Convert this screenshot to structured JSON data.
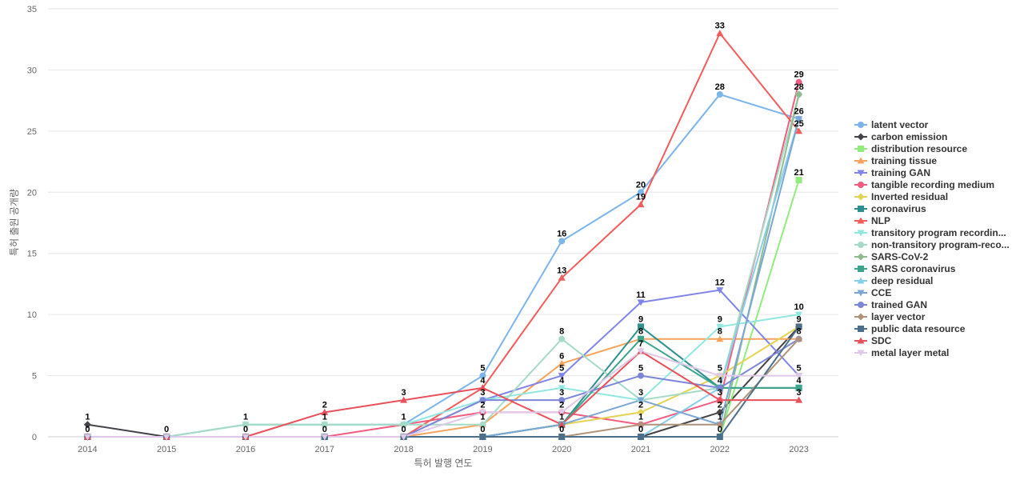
{
  "chart_data": {
    "type": "line",
    "title": "",
    "xlabel": "특허 발행 연도",
    "ylabel": "특허 출원 공개량",
    "ylim": [
      0,
      35
    ],
    "y_ticks": [
      0,
      5,
      10,
      15,
      20,
      25,
      30,
      35
    ],
    "grid": "horizontal",
    "legend_position": "right",
    "x": [
      "2014",
      "2015",
      "2016",
      "2017",
      "2018",
      "2019",
      "2020",
      "2021",
      "2022",
      "2023"
    ],
    "series": [
      {
        "name": "latent vector",
        "color": "#7cb5ec",
        "marker": "circle",
        "values": [
          0,
          0,
          1,
          1,
          1,
          5,
          16,
          20,
          28,
          26
        ]
      },
      {
        "name": "carbon emission",
        "color": "#434348",
        "marker": "diamond",
        "values": [
          1,
          0,
          0,
          0,
          0,
          0,
          0,
          0,
          2,
          9
        ]
      },
      {
        "name": "distribution resource",
        "color": "#90ed7d",
        "marker": "square",
        "values": [
          0,
          0,
          0,
          0,
          0,
          0,
          0,
          0,
          0,
          21
        ]
      },
      {
        "name": "training tissue",
        "color": "#f7a35c",
        "marker": "triangle",
        "values": [
          0,
          0,
          0,
          0,
          0,
          1,
          6,
          8,
          8,
          8
        ]
      },
      {
        "name": "training GAN",
        "color": "#8085e9",
        "marker": "triangle-down",
        "values": [
          0,
          0,
          0,
          0,
          0,
          3,
          5,
          11,
          12,
          5
        ]
      },
      {
        "name": "tangible recording medium",
        "color": "#f15c80",
        "marker": "circle",
        "values": [
          0,
          0,
          0,
          0,
          1,
          2,
          2,
          1,
          3,
          29
        ]
      },
      {
        "name": "Inverted residual",
        "color": "#e4d354",
        "marker": "diamond",
        "values": [
          0,
          0,
          0,
          0,
          0,
          0,
          1,
          2,
          5,
          9
        ]
      },
      {
        "name": "coronavirus",
        "color": "#2b908f",
        "marker": "square",
        "values": [
          0,
          0,
          0,
          0,
          0,
          0,
          1,
          9,
          4,
          4
        ]
      },
      {
        "name": "NLP",
        "color": "#f45b5b",
        "marker": "triangle",
        "values": [
          0,
          0,
          0,
          0,
          0,
          4,
          13,
          19,
          33,
          25
        ]
      },
      {
        "name": "transitory program recordin...",
        "color": "#91e8e1",
        "marker": "triangle-down",
        "values": [
          0,
          0,
          1,
          1,
          1,
          3,
          4,
          3,
          9,
          10
        ]
      },
      {
        "name": "non-transitory program-reco...",
        "color": "#a5dbc6",
        "marker": "circle",
        "values": [
          0,
          0,
          1,
          1,
          1,
          1,
          8,
          3,
          4,
          28
        ]
      },
      {
        "name": "SARS-CoV-2",
        "color": "#8fbc8f",
        "marker": "diamond",
        "values": [
          0,
          0,
          0,
          0,
          0,
          0,
          0,
          0,
          0,
          28
        ]
      },
      {
        "name": "SARS coronavirus",
        "color": "#3aa58a",
        "marker": "square",
        "values": [
          0,
          0,
          0,
          0,
          0,
          0,
          1,
          8,
          4,
          4
        ]
      },
      {
        "name": "deep residual",
        "color": "#87ceeb",
        "marker": "triangle",
        "values": [
          0,
          0,
          0,
          0,
          0,
          0,
          0,
          0,
          4,
          26
        ]
      },
      {
        "name": "CCE",
        "color": "#7ba7d6",
        "marker": "triangle-down",
        "values": [
          0,
          0,
          0,
          0,
          0,
          0,
          1,
          3,
          1,
          26
        ]
      },
      {
        "name": "trained GAN",
        "color": "#7b86d8",
        "marker": "circle",
        "values": [
          0,
          0,
          0,
          0,
          0,
          3,
          3,
          5,
          4,
          8
        ]
      },
      {
        "name": "layer vector",
        "color": "#b0937a",
        "marker": "diamond",
        "values": [
          0,
          0,
          0,
          0,
          0,
          0,
          0,
          1,
          1,
          8
        ]
      },
      {
        "name": "public data resource",
        "color": "#4b6f8a",
        "marker": "square",
        "values": [
          0,
          0,
          0,
          0,
          0,
          0,
          0,
          0,
          0,
          9
        ]
      },
      {
        "name": "SDC",
        "color": "#e8505b",
        "marker": "triangle",
        "values": [
          0,
          0,
          0,
          2,
          3,
          4,
          1,
          7,
          3,
          3
        ]
      },
      {
        "name": "metal layer metal",
        "color": "#e0c8e8",
        "marker": "triangle-down",
        "values": [
          0,
          0,
          0,
          0,
          0,
          2,
          2,
          7,
          5,
          5
        ]
      }
    ],
    "data_labels": [
      {
        "x": "2014",
        "text": "1",
        "y": 1
      },
      {
        "x": "2014",
        "text": "0",
        "y": 0
      },
      {
        "x": "2015",
        "text": "0",
        "y": 0
      },
      {
        "x": "2016",
        "text": "1",
        "y": 1
      },
      {
        "x": "2016",
        "text": "0",
        "y": 0
      },
      {
        "x": "2017",
        "text": "2",
        "y": 2
      },
      {
        "x": "2017",
        "text": "1",
        "y": 1
      },
      {
        "x": "2017",
        "text": "0",
        "y": 0
      },
      {
        "x": "2018",
        "text": "3",
        "y": 3
      },
      {
        "x": "2018",
        "text": "1",
        "y": 1
      },
      {
        "x": "2018",
        "text": "0",
        "y": 0
      },
      {
        "x": "2019",
        "text": "5",
        "y": 5
      },
      {
        "x": "2019",
        "text": "4",
        "y": 4
      },
      {
        "x": "2019",
        "text": "3",
        "y": 3
      },
      {
        "x": "2019",
        "text": "2",
        "y": 2
      },
      {
        "x": "2019",
        "text": "1",
        "y": 1
      },
      {
        "x": "2019",
        "text": "0",
        "y": 0
      },
      {
        "x": "2020",
        "text": "16",
        "y": 16
      },
      {
        "x": "2020",
        "text": "13",
        "y": 13
      },
      {
        "x": "2020",
        "text": "8",
        "y": 8
      },
      {
        "x": "2020",
        "text": "6",
        "y": 6
      },
      {
        "x": "2020",
        "text": "5",
        "y": 5
      },
      {
        "x": "2020",
        "text": "4",
        "y": 4
      },
      {
        "x": "2020",
        "text": "3",
        "y": 3
      },
      {
        "x": "2020",
        "text": "2",
        "y": 2
      },
      {
        "x": "2020",
        "text": "1",
        "y": 1
      },
      {
        "x": "2020",
        "text": "0",
        "y": 0
      },
      {
        "x": "2021",
        "text": "20",
        "y": 20
      },
      {
        "x": "2021",
        "text": "19",
        "y": 19
      },
      {
        "x": "2021",
        "text": "11",
        "y": 11
      },
      {
        "x": "2021",
        "text": "9",
        "y": 9
      },
      {
        "x": "2021",
        "text": "8",
        "y": 8
      },
      {
        "x": "2021",
        "text": "7",
        "y": 7
      },
      {
        "x": "2021",
        "text": "5",
        "y": 5
      },
      {
        "x": "2021",
        "text": "3",
        "y": 3
      },
      {
        "x": "2021",
        "text": "2",
        "y": 2
      },
      {
        "x": "2021",
        "text": "1",
        "y": 1
      },
      {
        "x": "2021",
        "text": "0",
        "y": 0
      },
      {
        "x": "2022",
        "text": "33",
        "y": 33
      },
      {
        "x": "2022",
        "text": "28",
        "y": 28
      },
      {
        "x": "2022",
        "text": "12",
        "y": 12
      },
      {
        "x": "2022",
        "text": "9",
        "y": 9
      },
      {
        "x": "2022",
        "text": "8",
        "y": 8
      },
      {
        "x": "2022",
        "text": "5",
        "y": 5
      },
      {
        "x": "2022",
        "text": "4",
        "y": 4
      },
      {
        "x": "2022",
        "text": "3",
        "y": 3
      },
      {
        "x": "2022",
        "text": "2",
        "y": 2
      },
      {
        "x": "2022",
        "text": "1",
        "y": 1
      },
      {
        "x": "2022",
        "text": "0",
        "y": 0
      },
      {
        "x": "2023",
        "text": "29",
        "y": 29
      },
      {
        "x": "2023",
        "text": "28",
        "y": 28
      },
      {
        "x": "2023",
        "text": "26",
        "y": 26
      },
      {
        "x": "2023",
        "text": "25",
        "y": 25
      },
      {
        "x": "2023",
        "text": "21",
        "y": 21
      },
      {
        "x": "2023",
        "text": "10",
        "y": 10
      },
      {
        "x": "2023",
        "text": "9",
        "y": 9
      },
      {
        "x": "2023",
        "text": "8",
        "y": 8
      },
      {
        "x": "2023",
        "text": "5",
        "y": 5
      },
      {
        "x": "2023",
        "text": "4",
        "y": 4
      },
      {
        "x": "2023",
        "text": "3",
        "y": 3
      }
    ]
  }
}
